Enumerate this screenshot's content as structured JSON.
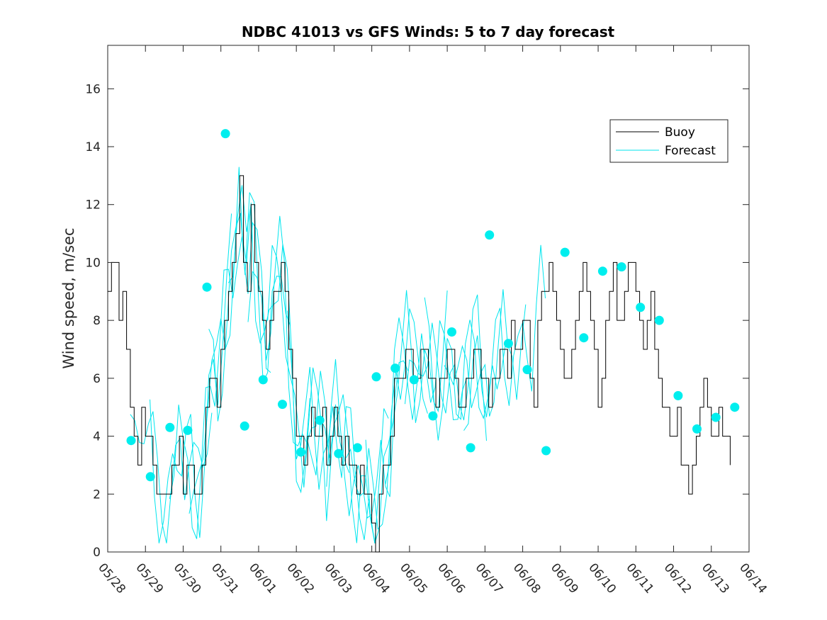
{
  "chart_data": {
    "type": "line",
    "title": "NDBC 41013 vs GFS Winds: 5 to 7 day forecast",
    "xlabel": "",
    "ylabel": "Wind speed, m/sec",
    "x_tick_labels": [
      "05/28",
      "05/29",
      "05/30",
      "05/31",
      "06/01",
      "06/02",
      "06/03",
      "06/04",
      "06/05",
      "06/06",
      "06/07",
      "06/08",
      "06/09",
      "06/10",
      "06/11",
      "06/12",
      "06/13",
      "06/14"
    ],
    "xlim_days": [
      0,
      17
    ],
    "y_ticks": [
      0,
      2,
      4,
      6,
      8,
      10,
      12,
      14,
      16
    ],
    "ylim": [
      0,
      17.5
    ],
    "grid": false,
    "legend": {
      "placement": "top-right",
      "entries": [
        {
          "name": "Buoy",
          "color": "#000000"
        },
        {
          "name": "Forecast",
          "color": "#00e5ee"
        }
      ]
    },
    "colors": {
      "buoy": "#000000",
      "forecast": "#00e5ee",
      "marker": "#00eeee"
    },
    "buoy_series": {
      "name": "Buoy",
      "x_days": [
        0,
        0.1,
        0.2,
        0.3,
        0.4,
        0.5,
        0.6,
        0.7,
        0.8,
        0.9,
        1.0,
        1.1,
        1.2,
        1.3,
        1.4,
        1.5,
        1.6,
        1.7,
        1.8,
        1.9,
        2.0,
        2.1,
        2.2,
        2.3,
        2.4,
        2.5,
        2.6,
        2.7,
        2.8,
        2.9,
        3.0,
        3.1,
        3.2,
        3.3,
        3.4,
        3.5,
        3.6,
        3.7,
        3.8,
        3.9,
        4.0,
        4.1,
        4.2,
        4.3,
        4.4,
        4.5,
        4.6,
        4.7,
        4.8,
        4.9,
        5.0,
        5.1,
        5.2,
        5.3,
        5.4,
        5.5,
        5.6,
        5.7,
        5.8,
        5.9,
        6.0,
        6.1,
        6.2,
        6.3,
        6.4,
        6.5,
        6.6,
        6.7,
        6.8,
        6.9,
        7.0,
        7.1,
        7.2,
        7.3,
        7.4,
        7.5,
        7.6,
        7.7,
        7.8,
        7.9,
        8.0,
        8.1,
        8.2,
        8.3,
        8.4,
        8.5,
        8.6,
        8.7,
        8.8,
        8.9,
        9.0,
        9.1,
        9.2,
        9.3,
        9.4,
        9.5,
        9.6,
        9.7,
        9.8,
        9.9,
        10.0,
        10.1,
        10.2,
        10.3,
        10.4,
        10.5,
        10.6,
        10.7,
        10.8,
        10.9,
        11.0,
        11.1,
        11.2,
        11.3,
        11.4,
        11.5,
        11.6,
        11.7,
        11.8,
        11.9,
        12.0,
        12.1,
        12.2,
        12.3,
        12.4,
        12.5,
        12.6,
        12.7,
        12.8,
        12.9,
        13.0,
        13.1,
        13.2,
        13.3,
        13.4,
        13.5,
        13.6,
        13.7,
        13.8,
        13.9,
        14.0,
        14.1,
        14.2,
        14.3,
        14.4,
        14.5,
        14.6,
        14.7,
        14.8,
        14.9,
        15.0,
        15.1,
        15.2,
        15.3,
        15.4,
        15.5,
        15.6,
        15.7,
        15.8,
        15.9,
        16.0,
        16.1,
        16.2,
        16.3,
        16.4,
        16.5
      ],
      "y": [
        9,
        10,
        10,
        8,
        9,
        7,
        5,
        4,
        3,
        5,
        4,
        4,
        3,
        2,
        2,
        2,
        2,
        3,
        3,
        4,
        2,
        3,
        3,
        2,
        2,
        3,
        5,
        6,
        6,
        5,
        7,
        8,
        9,
        10,
        11,
        13,
        10,
        9,
        12,
        10,
        9,
        8,
        7,
        8,
        9,
        9,
        10,
        9,
        7,
        6,
        4,
        4,
        3,
        4,
        5,
        4,
        4,
        5,
        3,
        4,
        5,
        4,
        3,
        4,
        3,
        3,
        2,
        3,
        2,
        2,
        1,
        0,
        2,
        3,
        3,
        4,
        6,
        6,
        6,
        7,
        7,
        6,
        6,
        7,
        7,
        6,
        6,
        5,
        6,
        6,
        7,
        7,
        6,
        5,
        5,
        6,
        6,
        7,
        7,
        6,
        6,
        5,
        6,
        6,
        7,
        7,
        6,
        8,
        7,
        7,
        8,
        8,
        6,
        5,
        8,
        9,
        9,
        10,
        9,
        8,
        7,
        6,
        6,
        7,
        8,
        9,
        10,
        9,
        8,
        7,
        5,
        6,
        8,
        9,
        10,
        8,
        8,
        9,
        10,
        10,
        9,
        8,
        7,
        8,
        9,
        7,
        6,
        5,
        5,
        4,
        4,
        5,
        3,
        3,
        2,
        3,
        4,
        5,
        6,
        5,
        4,
        4,
        5,
        4,
        4,
        3
      ]
    },
    "forecast_series_count": 18,
    "forecast_markers": {
      "x_days": [
        0.62,
        1.13,
        1.65,
        2.12,
        2.63,
        3.12,
        3.63,
        4.12,
        4.63,
        5.12,
        5.62,
        6.12,
        6.62,
        7.12,
        7.62,
        8.12,
        8.62,
        9.12,
        9.62,
        10.12,
        10.62,
        11.12,
        11.62,
        12.12,
        12.62,
        13.12,
        13.62,
        14.12,
        14.62,
        15.12,
        15.62,
        16.12,
        16.62
      ],
      "y": [
        3.85,
        2.6,
        4.3,
        4.2,
        9.15,
        14.45,
        4.35,
        5.95,
        5.1,
        3.45,
        4.55,
        3.4,
        3.6,
        6.05,
        6.35,
        5.95,
        4.7,
        7.6,
        3.6,
        10.95,
        7.2,
        6.3,
        3.5,
        10.35,
        7.4,
        9.7,
        9.85,
        8.45,
        8.0,
        5.4,
        4.25,
        4.65,
        5.0
      ]
    }
  }
}
